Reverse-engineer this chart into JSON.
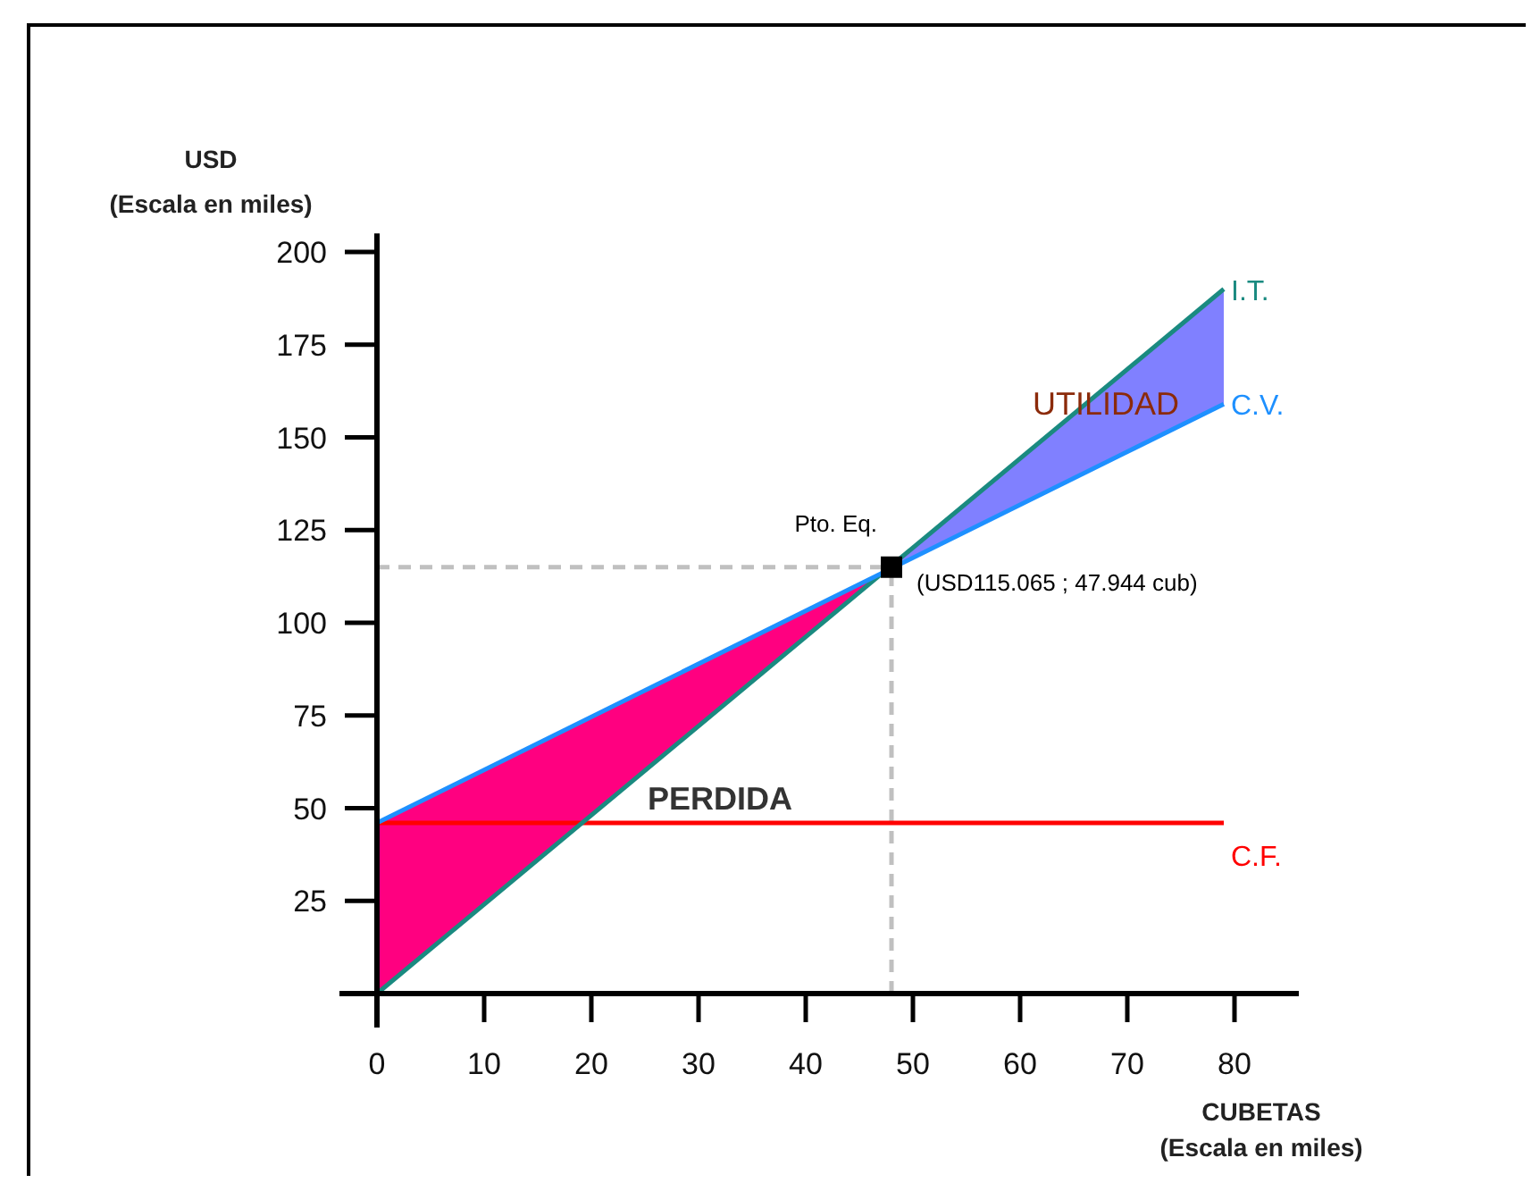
{
  "chart_data": {
    "type": "line",
    "xlabel": "CUBETAS\n(Escala en miles)",
    "ylabel": "USD\n(Escala en miles)",
    "xlim": [
      0,
      86
    ],
    "ylim": [
      0,
      205
    ],
    "xticks": [
      {
        "value": 0,
        "label": "0"
      },
      10,
      20,
      30,
      40,
      50,
      60,
      70,
      80
    ],
    "yticks": [
      {
        "value": 0,
        "label": null
      },
      25,
      50,
      75,
      100,
      125,
      150,
      175,
      200
    ],
    "grid": false,
    "series": [
      {
        "type": "area",
        "color": "#ff0080",
        "x": [
          0,
          48,
          0
        ],
        "values": [
          46,
          115,
          0
        ]
      },
      {
        "type": "area",
        "color": "#8080ff",
        "x": [
          48,
          79,
          79
        ],
        "values": [
          115,
          190,
          159
        ]
      },
      {
        "name": "C.F.",
        "color": "#ff0000",
        "x": [
          0,
          79
        ],
        "values": [
          46,
          46
        ]
      },
      {
        "name": "I.T.",
        "color": "#1a8a80",
        "x": [
          0,
          79
        ],
        "values": [
          0,
          190
        ]
      },
      {
        "name": "C.V.",
        "color": "#1e90ff",
        "x": [
          0,
          79
        ],
        "values": [
          46,
          159
        ]
      },
      {
        "type": "scatter",
        "marker": "square",
        "color": "#000000",
        "x": [
          48
        ],
        "values": [
          115
        ]
      }
    ],
    "ref_lines": [
      {
        "axis": "y",
        "value": 115,
        "color": "#c0c0c0",
        "line_style": "dashed"
      },
      {
        "axis": "x",
        "value": 48,
        "color": "#c0c0c0",
        "line_style": "dashed"
      }
    ],
    "annotations": [
      "PERDIDA",
      "UTILIDAD",
      "Pto. Eq.",
      "(USD115.065 ; 47.944 cub)"
    ]
  }
}
